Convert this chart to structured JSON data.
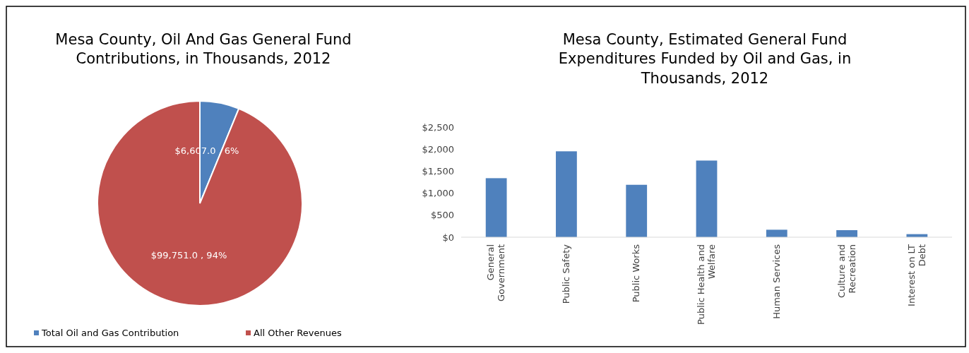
{
  "chart_data": [
    {
      "type": "pie",
      "title": "Mesa County, Oil And Gas General Fund Contributions, in Thousands, 2012",
      "categories": [
        "Total Oil and Gas Contribution",
        "All Other Revenues"
      ],
      "values": [
        6607.0,
        99751.0
      ],
      "colors": [
        "#4f81bd",
        "#c0504d"
      ],
      "value_labels": [
        "$6,607.0 , 6%",
        "$99,751.0 , 94%"
      ],
      "legend": "bottom"
    },
    {
      "type": "bar",
      "title": "Mesa County, Estimated General Fund Expenditures Funded by Oil and Gas, in Thousands, 2012",
      "categories": [
        "General Government",
        "Public Safety",
        "Public Works",
        "Public Health and Welfare",
        "Human Services",
        "Culture and Recreation",
        "Interest on LT Debt"
      ],
      "values": [
        1340,
        1950,
        1190,
        1740,
        170,
        160,
        70
      ],
      "color": "#4f81bd",
      "ylim": [
        0,
        2500
      ],
      "yticks": [
        {
          "value": 0,
          "label": "$0"
        },
        {
          "value": 500,
          "label": "$500"
        },
        {
          "value": 1000,
          "label": "$1,000"
        },
        {
          "value": 1500,
          "label": "$1,500"
        },
        {
          "value": 2000,
          "label": "$2,000"
        },
        {
          "value": 2500,
          "label": "$2,500"
        }
      ],
      "grid": false
    }
  ]
}
